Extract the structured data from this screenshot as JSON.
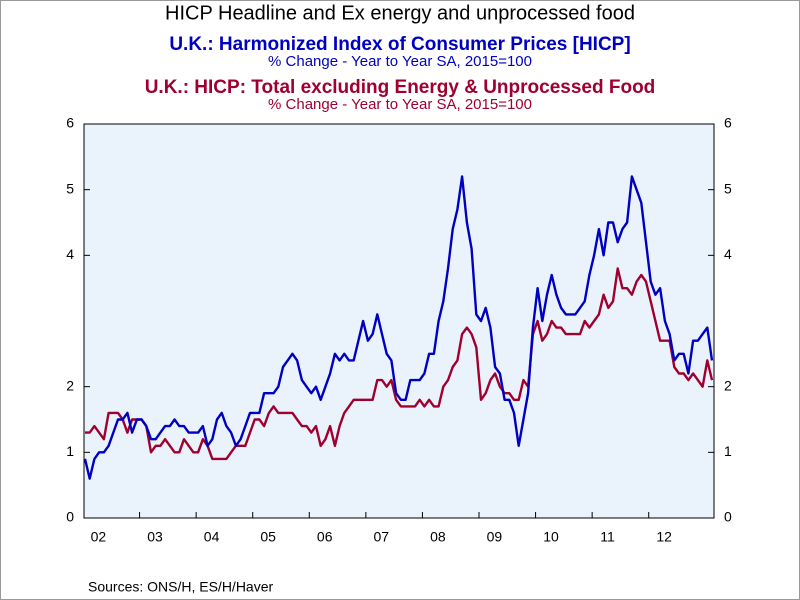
{
  "chart_data": {
    "type": "line",
    "title": "HICP Headline and Ex energy and unprocessed food",
    "subtitles": [
      {
        "text": "U.K.: Harmonized Index of Consumer Prices [HICP]",
        "color": "#0000c0"
      },
      {
        "text": "% Change - Year to Year     SA, 2015=100",
        "color": "#0000c0"
      },
      {
        "text": "U.K.: HICP: Total excluding Energy & Unprocessed Food",
        "color": "#a00030"
      },
      {
        "text": "% Change - Year to Year     SA, 2015=100",
        "color": "#a00030"
      }
    ],
    "source": "Sources:  ONS/H, ES/H/Haver",
    "categories": [
      null,
      null,
      "02",
      null,
      null,
      null,
      null,
      null,
      null,
      null,
      null,
      null,
      null,
      null,
      "03",
      null,
      null,
      null,
      null,
      null,
      null,
      null,
      null,
      null,
      null,
      null,
      "04",
      null,
      null,
      null,
      null,
      null,
      null,
      null,
      null,
      null,
      null,
      null,
      "05",
      null,
      null,
      null,
      null,
      null,
      null,
      null,
      null,
      null,
      null,
      null,
      "06",
      null,
      null,
      null,
      null,
      null,
      null,
      null,
      null,
      null,
      null,
      null,
      "07",
      null,
      null,
      null,
      null,
      null,
      null,
      null,
      null,
      null,
      null,
      null,
      "08",
      null,
      null,
      null,
      null,
      null,
      null,
      null,
      null,
      null,
      null,
      null,
      "09",
      null,
      null,
      null,
      null,
      null,
      null,
      null,
      null,
      null,
      null,
      null,
      "10",
      null,
      null,
      null,
      null,
      null,
      null,
      null,
      null,
      null,
      null,
      null,
      "11",
      null,
      null,
      null,
      null,
      null,
      null,
      null,
      null,
      null,
      null,
      null,
      "12",
      null,
      null,
      null,
      null,
      null,
      null,
      null,
      null,
      null,
      null,
      null
    ],
    "series": [
      {
        "name": "U.K.: Harmonized Index of Consumer Prices [HICP]",
        "color": "#0000c0",
        "values": [
          0.9,
          0.6,
          0.9,
          1.0,
          1.0,
          1.1,
          1.3,
          1.5,
          1.5,
          1.6,
          1.3,
          1.5,
          1.5,
          1.4,
          1.2,
          1.2,
          1.3,
          1.4,
          1.4,
          1.5,
          1.4,
          1.4,
          1.3,
          1.3,
          1.3,
          1.4,
          1.1,
          1.2,
          1.5,
          1.6,
          1.4,
          1.3,
          1.1,
          1.2,
          1.4,
          1.6,
          1.6,
          1.6,
          1.9,
          1.9,
          1.9,
          2.0,
          2.3,
          2.4,
          2.5,
          2.4,
          2.1,
          2.0,
          1.9,
          2.0,
          1.8,
          2.0,
          2.2,
          2.5,
          2.4,
          2.5,
          2.4,
          2.4,
          2.7,
          3.0,
          2.7,
          2.8,
          3.1,
          2.8,
          2.5,
          2.4,
          1.9,
          1.8,
          1.8,
          2.1,
          2.1,
          2.1,
          2.2,
          2.5,
          2.5,
          3.0,
          3.3,
          3.8,
          4.4,
          4.7,
          5.2,
          4.5,
          4.1,
          3.1,
          3.0,
          3.2,
          2.9,
          2.3,
          2.2,
          1.8,
          1.8,
          1.6,
          1.1,
          1.5,
          1.9,
          2.9,
          3.5,
          3.0,
          3.4,
          3.7,
          3.4,
          3.2,
          3.1,
          3.1,
          3.1,
          3.2,
          3.3,
          3.7,
          4.0,
          4.4,
          4.0,
          4.5,
          4.5,
          4.2,
          4.4,
          4.5,
          5.2,
          5.0,
          4.8,
          4.2,
          3.6,
          3.4,
          3.5,
          3.0,
          2.8,
          2.4,
          2.5,
          2.5,
          2.2,
          2.7,
          2.7,
          2.8,
          2.9,
          2.4
        ]
      },
      {
        "name": "U.K.: HICP: Total excluding Energy & Unprocessed Food",
        "color": "#a00030",
        "values": [
          1.3,
          1.3,
          1.4,
          1.3,
          1.2,
          1.6,
          1.6,
          1.6,
          1.5,
          1.3,
          1.5,
          1.5,
          1.5,
          1.4,
          1.0,
          1.1,
          1.1,
          1.2,
          1.1,
          1.0,
          1.0,
          1.2,
          1.1,
          1.0,
          1.0,
          1.2,
          1.1,
          0.9,
          0.9,
          0.9,
          0.9,
          1.0,
          1.1,
          1.1,
          1.1,
          1.3,
          1.5,
          1.5,
          1.4,
          1.6,
          1.7,
          1.6,
          1.6,
          1.6,
          1.6,
          1.5,
          1.4,
          1.4,
          1.3,
          1.4,
          1.1,
          1.2,
          1.4,
          1.1,
          1.4,
          1.6,
          1.7,
          1.8,
          1.8,
          1.8,
          1.8,
          1.8,
          2.1,
          2.1,
          2.0,
          2.1,
          1.8,
          1.7,
          1.7,
          1.7,
          1.7,
          1.8,
          1.7,
          1.8,
          1.7,
          1.7,
          2.0,
          2.1,
          2.3,
          2.4,
          2.8,
          2.9,
          2.8,
          2.6,
          1.8,
          1.9,
          2.1,
          2.2,
          2.0,
          1.9,
          1.9,
          1.8,
          1.8,
          2.1,
          2.0,
          2.8,
          3.0,
          2.7,
          2.8,
          3.0,
          2.9,
          2.9,
          2.8,
          2.8,
          2.8,
          2.8,
          3.0,
          2.9,
          3.0,
          3.1,
          3.4,
          3.2,
          3.3,
          3.8,
          3.5,
          3.5,
          3.4,
          3.6,
          3.7,
          3.6,
          3.3,
          3.0,
          2.7,
          2.7,
          2.7,
          2.3,
          2.2,
          2.2,
          2.1,
          2.2,
          2.1,
          2.0,
          2.4,
          2.1
        ]
      }
    ],
    "ylim": [
      0,
      6
    ],
    "yticks": [
      0,
      1,
      2,
      4,
      5,
      6
    ],
    "y2lim": [
      0,
      6
    ],
    "y2ticks": [
      0,
      1,
      2,
      4,
      5,
      6
    ],
    "grid": false,
    "plot_background": "#eaf2fc"
  }
}
